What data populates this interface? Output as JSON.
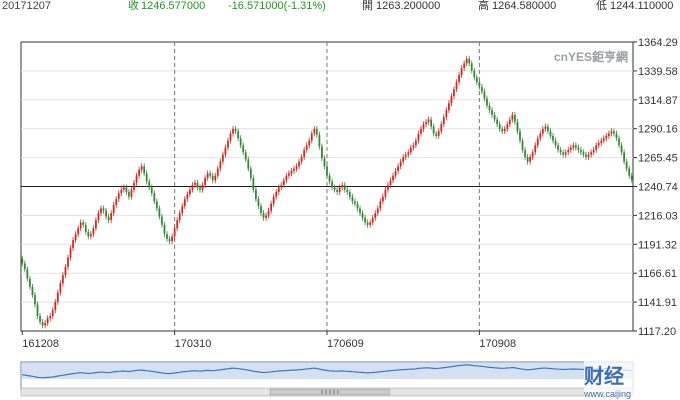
{
  "header": {
    "date": "20171207",
    "close_label": "收",
    "close_value": "1246.577000",
    "change": "-16.571000(-1.31%)",
    "open_label": "開",
    "open_value": "1263.200000",
    "high_label": "高",
    "high_value": "1264.580000",
    "low_label": "低",
    "low_value": "1244.110000",
    "colors": {
      "date": "#444444",
      "close": "#1a9c1a",
      "change": "#1a9c1a",
      "open": "#333333"
    }
  },
  "watermark": {
    "brand": "cnYES鉅亨網",
    "site_logo": "财经",
    "site_url": "www.caijing"
  },
  "chart_data": {
    "type": "candlestick",
    "title": "",
    "xlabel": "",
    "ylabel": "",
    "ylim": [
      1117.2,
      1364.29
    ],
    "y_ticks": [
      "1364.29",
      "1339.58",
      "1314.87",
      "1290.16",
      "1265.45",
      "1240.74",
      "1216.03",
      "1191.32",
      "1166.61",
      "1141.91",
      "1117.20"
    ],
    "x_ticks": [
      {
        "label": "161208",
        "index": 0
      },
      {
        "label": "170310",
        "index": 60
      },
      {
        "label": "170609",
        "index": 120
      },
      {
        "label": "170908",
        "index": 180
      }
    ],
    "reference_line": 1240.74,
    "grid": true,
    "up_color": "#d9241e",
    "down_color": "#2f8a2f",
    "navigator_color": "#3a78c8",
    "closes": [
      1175,
      1170,
      1162,
      1155,
      1148,
      1140,
      1130,
      1125,
      1122,
      1124,
      1128,
      1130,
      1135,
      1142,
      1150,
      1158,
      1165,
      1172,
      1180,
      1188,
      1195,
      1200,
      1205,
      1210,
      1208,
      1202,
      1198,
      1200,
      1205,
      1212,
      1218,
      1222,
      1220,
      1215,
      1212,
      1218,
      1225,
      1230,
      1235,
      1238,
      1240,
      1236,
      1232,
      1238,
      1244,
      1250,
      1255,
      1258,
      1252,
      1245,
      1240,
      1235,
      1228,
      1222,
      1215,
      1208,
      1200,
      1196,
      1194,
      1198,
      1205,
      1212,
      1218,
      1224,
      1230,
      1234,
      1238,
      1242,
      1244,
      1240,
      1238,
      1242,
      1248,
      1252,
      1250,
      1246,
      1250,
      1256,
      1262,
      1268,
      1274,
      1280,
      1286,
      1290,
      1288,
      1282,
      1276,
      1270,
      1264,
      1256,
      1248,
      1238,
      1230,
      1224,
      1218,
      1214,
      1216,
      1220,
      1226,
      1232,
      1236,
      1240,
      1242,
      1246,
      1250,
      1252,
      1254,
      1256,
      1258,
      1262,
      1266,
      1272,
      1276,
      1280,
      1286,
      1290,
      1285,
      1275,
      1265,
      1258,
      1250,
      1245,
      1240,
      1238,
      1236,
      1240,
      1242,
      1238,
      1236,
      1232,
      1228,
      1226,
      1222,
      1218,
      1214,
      1210,
      1208,
      1210,
      1214,
      1218,
      1222,
      1228,
      1232,
      1238,
      1242,
      1246,
      1250,
      1254,
      1258,
      1262,
      1266,
      1268,
      1270,
      1274,
      1276,
      1280,
      1286,
      1290,
      1294,
      1296,
      1298,
      1292,
      1286,
      1284,
      1288,
      1294,
      1300,
      1306,
      1312,
      1318,
      1324,
      1330,
      1336,
      1342,
      1346,
      1350,
      1346,
      1340,
      1334,
      1330,
      1326,
      1322,
      1316,
      1310,
      1306,
      1302,
      1298,
      1294,
      1290,
      1288,
      1290,
      1294,
      1298,
      1302,
      1296,
      1288,
      1280,
      1272,
      1266,
      1262,
      1266,
      1270,
      1276,
      1282,
      1286,
      1290,
      1292,
      1288,
      1284,
      1280,
      1276,
      1272,
      1270,
      1268,
      1270,
      1272,
      1274,
      1276,
      1274,
      1272,
      1270,
      1268,
      1266,
      1268,
      1270,
      1272,
      1276,
      1278,
      1280,
      1282,
      1284,
      1286,
      1288,
      1286,
      1282,
      1276,
      1270,
      1262,
      1256,
      1250,
      1246.577
    ]
  }
}
